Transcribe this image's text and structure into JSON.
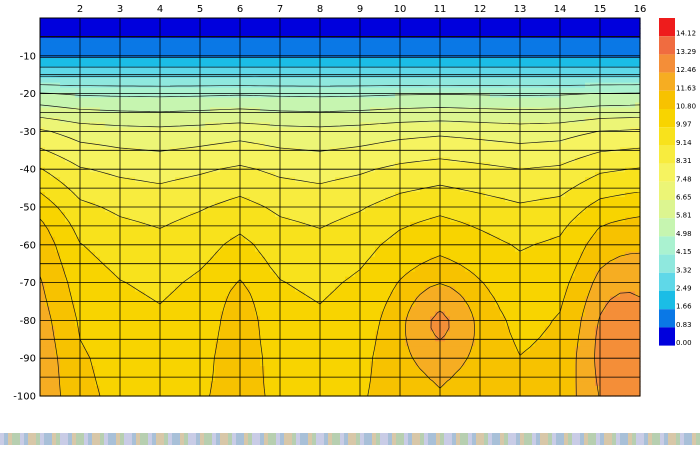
{
  "chart_data": {
    "type": "contour",
    "title": "",
    "xlabel": "",
    "ylabel": "",
    "x_ticks": [
      2,
      3,
      4,
      5,
      6,
      7,
      8,
      9,
      10,
      11,
      12,
      13,
      14,
      15,
      16
    ],
    "y_ticks": [
      -10,
      -20,
      -30,
      -40,
      -50,
      -60,
      -70,
      -80,
      -90,
      -100
    ],
    "xlim": [
      1,
      16
    ],
    "ylim": [
      -100,
      0
    ],
    "grid": true,
    "legend_position": "right",
    "levels": [
      "0.00",
      "0.83",
      "1.66",
      "2.49",
      "3.32",
      "4.15",
      "4.98",
      "5.81",
      "6.65",
      "7.48",
      "8.31",
      "9.14",
      "9.97",
      "10.80",
      "11.63",
      "12.46",
      "13.29",
      "14.12"
    ],
    "colors": [
      "#0000dd",
      "#0a78e6",
      "#1bbde6",
      "#5fd8e8",
      "#8fe8de",
      "#aaf2d0",
      "#c6f5b0",
      "#dcf590",
      "#ecf576",
      "#f6f360",
      "#f8ec3e",
      "#f8e21c",
      "#f8d400",
      "#f7c200",
      "#f6ad22",
      "#f48e38",
      "#f06c40",
      "#ee1c1c"
    ],
    "profile_depths": [
      0,
      -10,
      -20,
      -30,
      -40,
      -50,
      -60,
      -70,
      -80,
      -90,
      -100
    ],
    "profile_values": [
      0.2,
      1.5,
      4.8,
      6.9,
      8.0,
      8.8,
      9.4,
      9.8,
      10.1,
      10.3,
      10.4
    ],
    "column_offsets": [
      1.9,
      0.6,
      0.2,
      0.0,
      0.3,
      0.7,
      0.2,
      0.0,
      0.3,
      0.8,
      1.1,
      0.8,
      0.5,
      0.7,
      1.6,
      1.9
    ],
    "hot_spots": [
      {
        "x": 11,
        "y": -80,
        "amp": 1.4,
        "sx": 1.0,
        "sy": 12
      },
      {
        "x": 6,
        "y": -80,
        "amp": 0.6,
        "sx": 0.45,
        "sy": 14
      },
      {
        "x": 15.5,
        "y": -85,
        "amp": 1.2,
        "sx": 0.9,
        "sy": 20
      }
    ]
  },
  "footer": {
    "bar_colors": [
      "#c9cce6",
      "#b7cfb0",
      "#d8c7a8",
      "#a8c0d8"
    ]
  }
}
